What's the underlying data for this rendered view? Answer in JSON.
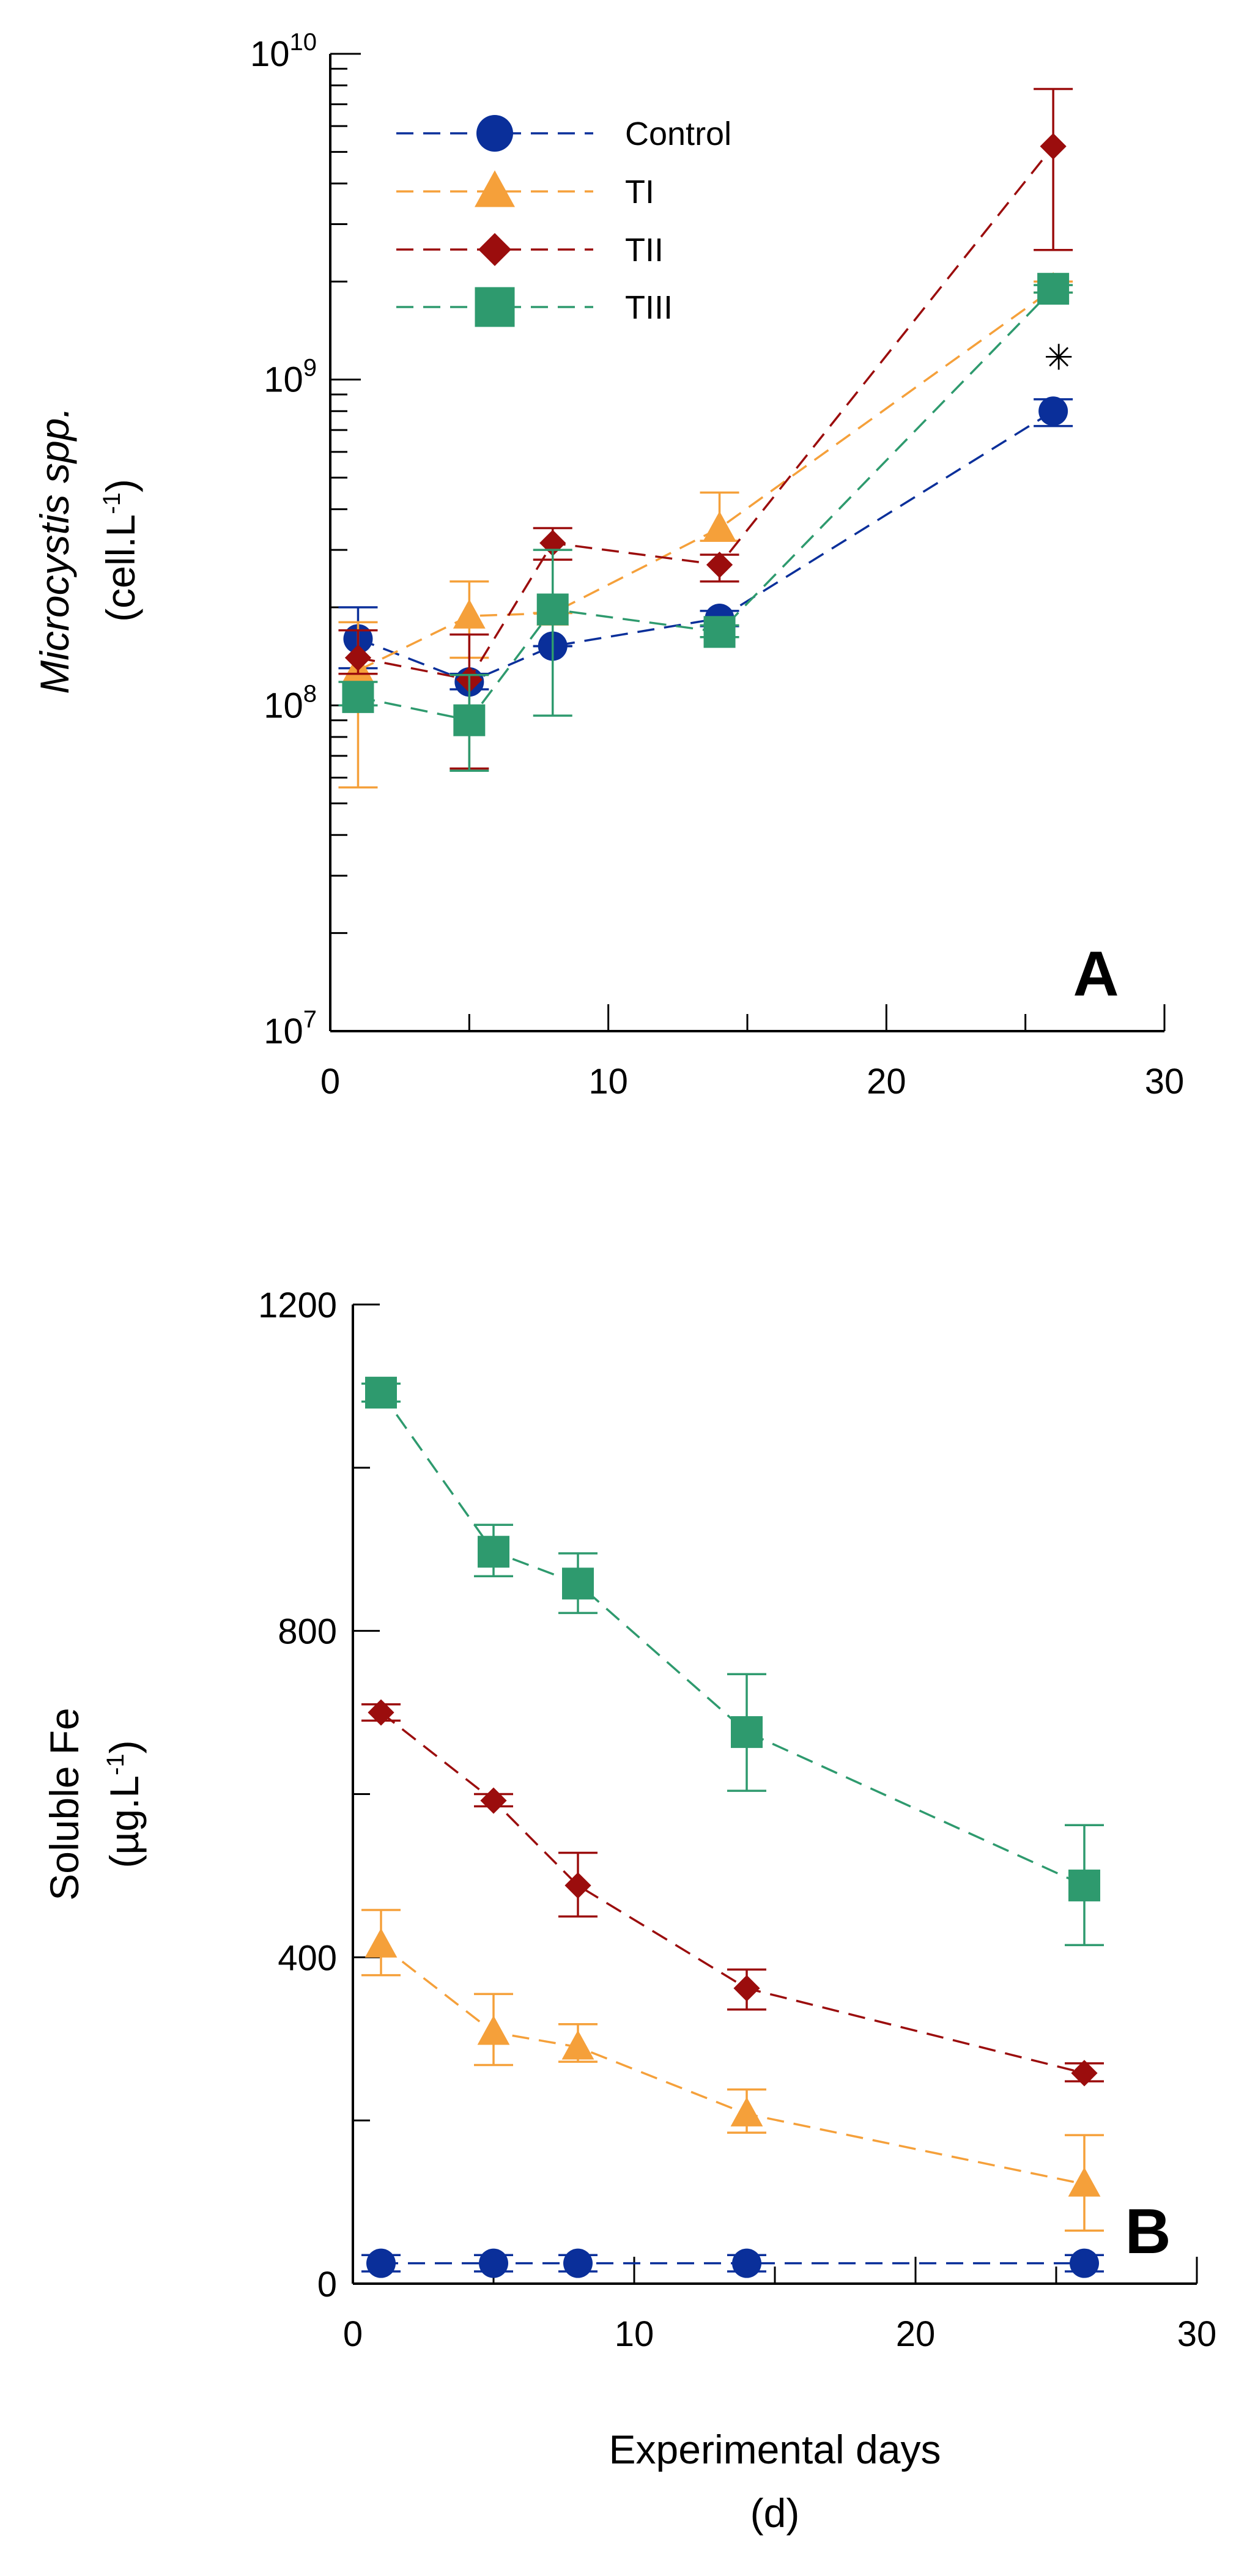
{
  "chart_data": [
    {
      "type": "line",
      "panel_label": "A",
      "scale_y": "log",
      "x": [
        1,
        5,
        8,
        14,
        26
      ],
      "xlim": [
        0,
        30
      ],
      "ylim": [
        10000000,
        10000000000
      ],
      "xticks": [
        "0",
        "10",
        "20",
        "30"
      ],
      "yticks": [
        {
          "base": "10",
          "exp": "7"
        },
        {
          "base": "10",
          "exp": "8"
        },
        {
          "base": "10",
          "exp": "9"
        },
        {
          "base": "10",
          "exp": "10"
        }
      ],
      "ylabel": {
        "italic": "Microcystis spp.",
        "unit_pre": "(cell.L",
        "unit_sup": "-1",
        "unit_post": ")"
      },
      "annotation": "✳",
      "annotation_pos": {
        "x": 26.2,
        "y": 1200000000
      },
      "series": [
        {
          "name": "Control",
          "marker": "circle",
          "color": "#0a2f9a",
          "values": [
            160000000,
            118000000,
            152000000,
            185000000,
            800000000
          ],
          "err_hi": [
            200000000,
            125000000,
            152000000,
            195000000,
            870000000
          ],
          "err_lo": [
            130000000,
            112000000,
            152000000,
            175000000,
            720000000
          ]
        },
        {
          "name": "TI",
          "marker": "triangle",
          "color": "#f5a03a",
          "values": [
            128000000,
            188000000,
            192000000,
            350000000,
            1900000000
          ],
          "err_hi": [
            180000000,
            240000000,
            192000000,
            450000000,
            2000000000
          ],
          "err_lo": [
            56000000,
            140000000,
            192000000,
            320000000,
            1850000000
          ]
        },
        {
          "name": "TII",
          "marker": "diamond",
          "color": "#9b0d0d",
          "values": [
            140000000,
            120000000,
            315000000,
            270000000,
            5200000000
          ],
          "err_hi": [
            170000000,
            165000000,
            350000000,
            290000000,
            7800000000
          ],
          "err_lo": [
            125000000,
            64000000,
            280000000,
            240000000,
            2500000000
          ]
        },
        {
          "name": "TIII",
          "marker": "square",
          "color": "#2e9a6e",
          "values": [
            106000000,
            90000000,
            197000000,
            168000000,
            1900000000
          ],
          "err_hi": [
            118000000,
            124000000,
            300000000,
            176000000,
            1950000000
          ],
          "err_lo": [
            100000000,
            63000000,
            93000000,
            162000000,
            1850000000
          ]
        }
      ]
    },
    {
      "type": "line",
      "panel_label": "B",
      "scale_y": "linear",
      "x": [
        1,
        5,
        8,
        14,
        26
      ],
      "xlim": [
        0,
        30
      ],
      "ylim": [
        0,
        1200
      ],
      "xticks": [
        "0",
        "10",
        "20",
        "30"
      ],
      "yticks": [
        "0",
        "400",
        "800",
        "1200"
      ],
      "ylabel": {
        "line1": "Soluble Fe",
        "unit_pre": "(µg.L",
        "unit_sup": "-1",
        "unit_post": ")"
      },
      "xlabel": {
        "line1": "Experimental days",
        "line2": "(d)"
      },
      "series": [
        {
          "name": "Control",
          "marker": "circle",
          "color": "#0a2f9a",
          "values": [
            25,
            25,
            25,
            25,
            25
          ],
          "err_hi": [
            35,
            35,
            35,
            35,
            35
          ],
          "err_lo": [
            15,
            15,
            15,
            15,
            15
          ]
        },
        {
          "name": "TI",
          "marker": "triangle",
          "color": "#f5a03a",
          "values": [
            415,
            308,
            290,
            208,
            122
          ],
          "err_hi": [
            458,
            355,
            318,
            238,
            182
          ],
          "err_lo": [
            378,
            268,
            272,
            185,
            65
          ]
        },
        {
          "name": "TII",
          "marker": "diamond",
          "color": "#9b0d0d",
          "values": [
            700,
            592,
            488,
            362,
            258
          ],
          "err_hi": [
            710,
            600,
            528,
            385,
            270
          ],
          "err_lo": [
            690,
            585,
            450,
            336,
            248
          ]
        },
        {
          "name": "TIII",
          "marker": "square",
          "color": "#2e9a6e",
          "values": [
            1092,
            897,
            858,
            676,
            488
          ],
          "err_hi": [
            1103,
            930,
            895,
            747,
            562
          ],
          "err_lo": [
            1081,
            867,
            822,
            604,
            415
          ]
        }
      ]
    }
  ]
}
